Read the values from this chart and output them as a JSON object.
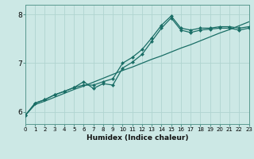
{
  "title": "",
  "xlabel": "Humidex (Indice chaleur)",
  "ylabel": "",
  "background_color": "#cce8e5",
  "line_color": "#1a6e66",
  "grid_color": "#b0d4d0",
  "xlim": [
    0,
    23
  ],
  "ylim": [
    5.75,
    8.2
  ],
  "yticks": [
    6,
    7,
    8
  ],
  "xtick_labels": [
    "0",
    "1",
    "2",
    "3",
    "4",
    "5",
    "6",
    "7",
    "8",
    "9",
    "10",
    "11",
    "12",
    "13",
    "14",
    "15",
    "16",
    "17",
    "18",
    "19",
    "20",
    "21",
    "22",
    "23"
  ],
  "line1_x": [
    0,
    1,
    2,
    3,
    4,
    5,
    6,
    7,
    8,
    9,
    10,
    11,
    12,
    13,
    14,
    15,
    16,
    17,
    18,
    19,
    20,
    21,
    22,
    23
  ],
  "line1_y": [
    5.93,
    6.15,
    6.22,
    6.3,
    6.38,
    6.46,
    6.53,
    6.61,
    6.69,
    6.77,
    6.85,
    6.92,
    7.0,
    7.08,
    7.15,
    7.23,
    7.31,
    7.38,
    7.46,
    7.54,
    7.62,
    7.69,
    7.77,
    7.85
  ],
  "line2_x": [
    0,
    1,
    2,
    3,
    4,
    5,
    6,
    7,
    8,
    9,
    10,
    11,
    12,
    13,
    14,
    15,
    16,
    17,
    18,
    19,
    20,
    21,
    22,
    23
  ],
  "line2_y": [
    5.93,
    6.18,
    6.25,
    6.35,
    6.42,
    6.5,
    6.55,
    6.55,
    6.62,
    6.68,
    7.0,
    7.12,
    7.28,
    7.52,
    7.78,
    7.97,
    7.72,
    7.68,
    7.72,
    7.72,
    7.75,
    7.75,
    7.72,
    7.75
  ],
  "line3_x": [
    0,
    1,
    2,
    3,
    4,
    5,
    6,
    7,
    8,
    9,
    10,
    11,
    12,
    13,
    14,
    15,
    16,
    17,
    18,
    19,
    20,
    21,
    22,
    23
  ],
  "line3_y": [
    5.93,
    6.18,
    6.25,
    6.35,
    6.42,
    6.5,
    6.62,
    6.48,
    6.58,
    6.55,
    6.9,
    7.02,
    7.18,
    7.45,
    7.72,
    7.93,
    7.68,
    7.63,
    7.68,
    7.7,
    7.72,
    7.72,
    7.68,
    7.72
  ]
}
